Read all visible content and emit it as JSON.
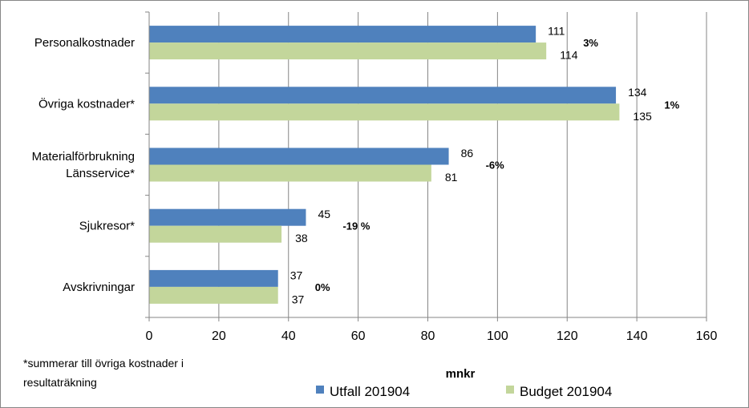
{
  "chart_data": {
    "type": "bar",
    "orientation": "horizontal",
    "categories": [
      [
        "Personalkostnader"
      ],
      [
        "Övriga kostnader*"
      ],
      [
        "Materialförbrukning",
        "Länsservice*"
      ],
      [
        "Sjukresor*"
      ],
      [
        "Avskrivningar"
      ]
    ],
    "series": [
      {
        "name": "Utfall 201904",
        "color": "#4F81BD",
        "values": [
          111,
          134,
          86,
          45,
          37
        ]
      },
      {
        "name": "Budget 201904",
        "color": "#C3D69B",
        "values": [
          114,
          135,
          81,
          38,
          37
        ]
      }
    ],
    "percent_labels": [
      "3%",
      "1%",
      "-6%",
      "-19 %",
      "0%"
    ],
    "xlim": [
      0,
      160
    ],
    "x_ticks": [
      0,
      20,
      40,
      60,
      80,
      100,
      120,
      140,
      160
    ],
    "xlabel": "mnkr",
    "grid": "vertical",
    "legend_position": "bottom"
  },
  "footnote": [
    "*summerar till övriga kostnader i",
    "resultaträkning"
  ]
}
